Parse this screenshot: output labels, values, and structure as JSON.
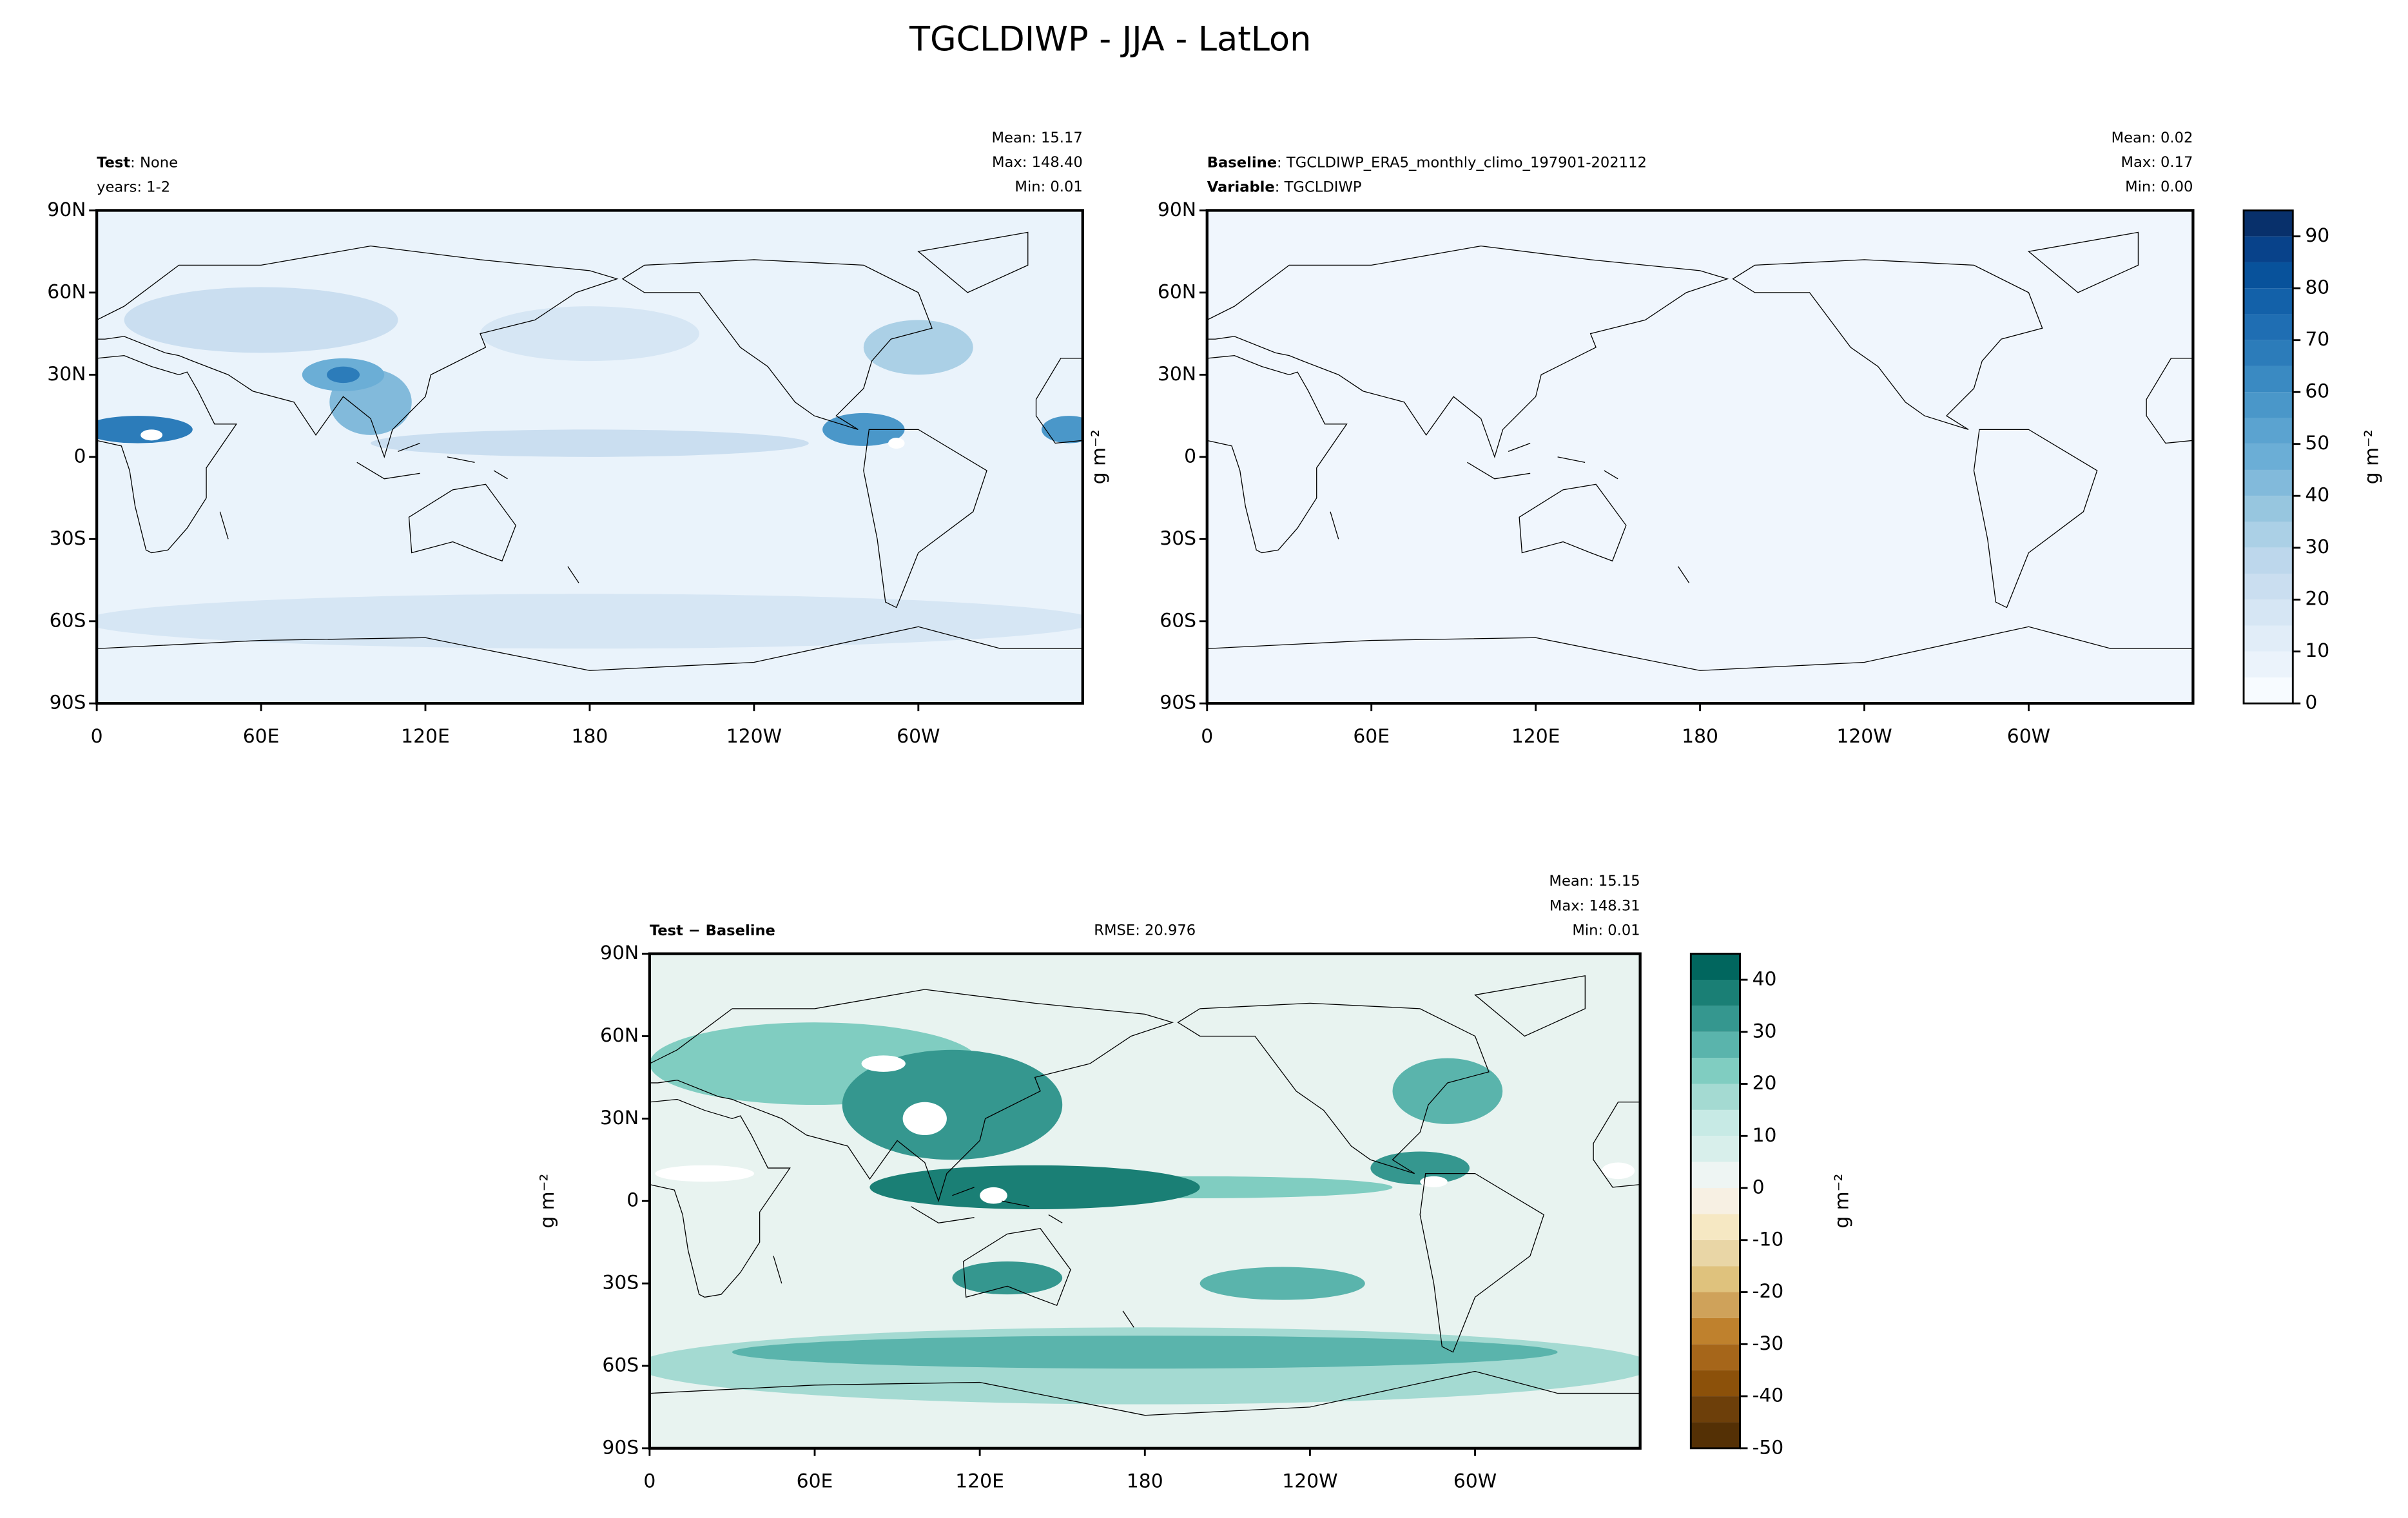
{
  "title": "TGCLDIWP - JJA - LatLon",
  "chart_data": [
    {
      "type": "contour-map",
      "left_lines": [
        [
          {
            "text": "Test",
            "bold": true
          },
          {
            "text": ": None"
          }
        ],
        [
          {
            "text": "years: 1-2"
          }
        ]
      ],
      "stats": [
        "Mean: 15.17",
        "Max: 148.40",
        "Min:  0.01"
      ],
      "xlim": [
        0,
        360
      ],
      "xticks": [
        0,
        {
          "value": 60,
          "label": "60E"
        },
        {
          "value": 120,
          "label": "120E"
        },
        180,
        {
          "value": 240,
          "label": "120W"
        },
        {
          "value": 300,
          "label": "60W"
        }
      ],
      "ylim": [
        -90,
        90
      ],
      "yticks": [
        {
          "value": -90,
          "label": "90S"
        },
        {
          "value": -60,
          "label": "60S"
        },
        {
          "value": -30,
          "label": "30S"
        },
        0,
        {
          "value": 30,
          "label": "30N"
        },
        {
          "value": 60,
          "label": "60N"
        },
        {
          "value": 90,
          "label": "90N"
        }
      ]
    },
    {
      "type": "contour-map",
      "left_lines": [
        [
          {
            "text": "Baseline",
            "bold": true
          },
          {
            "text": ": TGCLDIWP_ERA5_monthly_climo_197901-202112"
          }
        ],
        [
          {
            "text": "Variable",
            "bold": true
          },
          {
            "text": ": TGCLDIWP"
          }
        ]
      ],
      "stats": [
        "Mean:  0.02",
        "Max:  0.17",
        "Min:  0.00"
      ],
      "ylabel": "g m⁻²",
      "xlim": [
        0,
        360
      ],
      "xticks": [
        0,
        {
          "value": 60,
          "label": "60E"
        },
        {
          "value": 120,
          "label": "120E"
        },
        180,
        {
          "value": 240,
          "label": "120W"
        },
        {
          "value": 300,
          "label": "60W"
        }
      ],
      "ylim": [
        -90,
        90
      ],
      "yticks": [
        {
          "value": -90,
          "label": "90S"
        },
        {
          "value": -60,
          "label": "60S"
        },
        {
          "value": -30,
          "label": "30S"
        },
        0,
        {
          "value": 30,
          "label": "30N"
        },
        {
          "value": 60,
          "label": "60N"
        },
        {
          "value": 90,
          "label": "90N"
        }
      ],
      "colorbar": {
        "label": "g m⁻²",
        "levels": [
          0,
          5,
          10,
          15,
          20,
          25,
          30,
          35,
          40,
          45,
          50,
          55,
          60,
          65,
          70,
          75,
          80,
          85,
          90,
          95
        ],
        "colors": [
          "#f7fbff",
          "#ebf3fb",
          "#e1edf8",
          "#d6e6f4",
          "#cadef0",
          "#bdd7ec",
          "#abd0e6",
          "#97c6df",
          "#82badb",
          "#6baed6",
          "#5ba3d0",
          "#4a97c9",
          "#3a8ac2",
          "#2c7cba",
          "#1f6eb3",
          "#1361a9",
          "#08529b",
          "#08428a",
          "#08306b"
        ],
        "ticks": [
          0,
          10,
          20,
          30,
          40,
          50,
          60,
          70,
          80,
          90
        ]
      }
    },
    {
      "type": "contour-map",
      "left_lines": [
        [
          {
            "text": "Test − Baseline",
            "bold": true
          }
        ]
      ],
      "center_text": "RMSE: 20.976",
      "stats": [
        "Mean: 15.15",
        "Max: 148.31",
        "Min:  0.01"
      ],
      "ylabel": "g m⁻²",
      "xlim": [
        0,
        360
      ],
      "xticks": [
        0,
        {
          "value": 60,
          "label": "60E"
        },
        {
          "value": 120,
          "label": "120E"
        },
        180,
        {
          "value": 240,
          "label": "120W"
        },
        {
          "value": 300,
          "label": "60W"
        }
      ],
      "ylim": [
        -90,
        90
      ],
      "yticks": [
        {
          "value": -90,
          "label": "90S"
        },
        {
          "value": -60,
          "label": "60S"
        },
        {
          "value": -30,
          "label": "30S"
        },
        0,
        {
          "value": 30,
          "label": "30N"
        },
        {
          "value": 60,
          "label": "60N"
        },
        {
          "value": 90,
          "label": "90N"
        }
      ],
      "colorbar": {
        "label": "g m⁻²",
        "levels": [
          -50,
          -45,
          -40,
          -35,
          -30,
          -25,
          -20,
          -15,
          -10,
          -5,
          0,
          5,
          10,
          15,
          20,
          25,
          30,
          35,
          40,
          45
        ],
        "colors": [
          "#543005",
          "#6d3f0a",
          "#8c510a",
          "#a6661a",
          "#bf812d",
          "#cfa25a",
          "#dfc27d",
          "#e9d6a6",
          "#f6e8c3",
          "#f7f0e3",
          "#eef5f3",
          "#d8efeb",
          "#c7eae5",
          "#a4dad2",
          "#80cdc1",
          "#5ab4ac",
          "#35978f",
          "#1a7f75",
          "#01665e"
        ],
        "ticks": [
          -50,
          -40,
          -30,
          -20,
          -10,
          0,
          10,
          20,
          30,
          40
        ]
      }
    }
  ]
}
